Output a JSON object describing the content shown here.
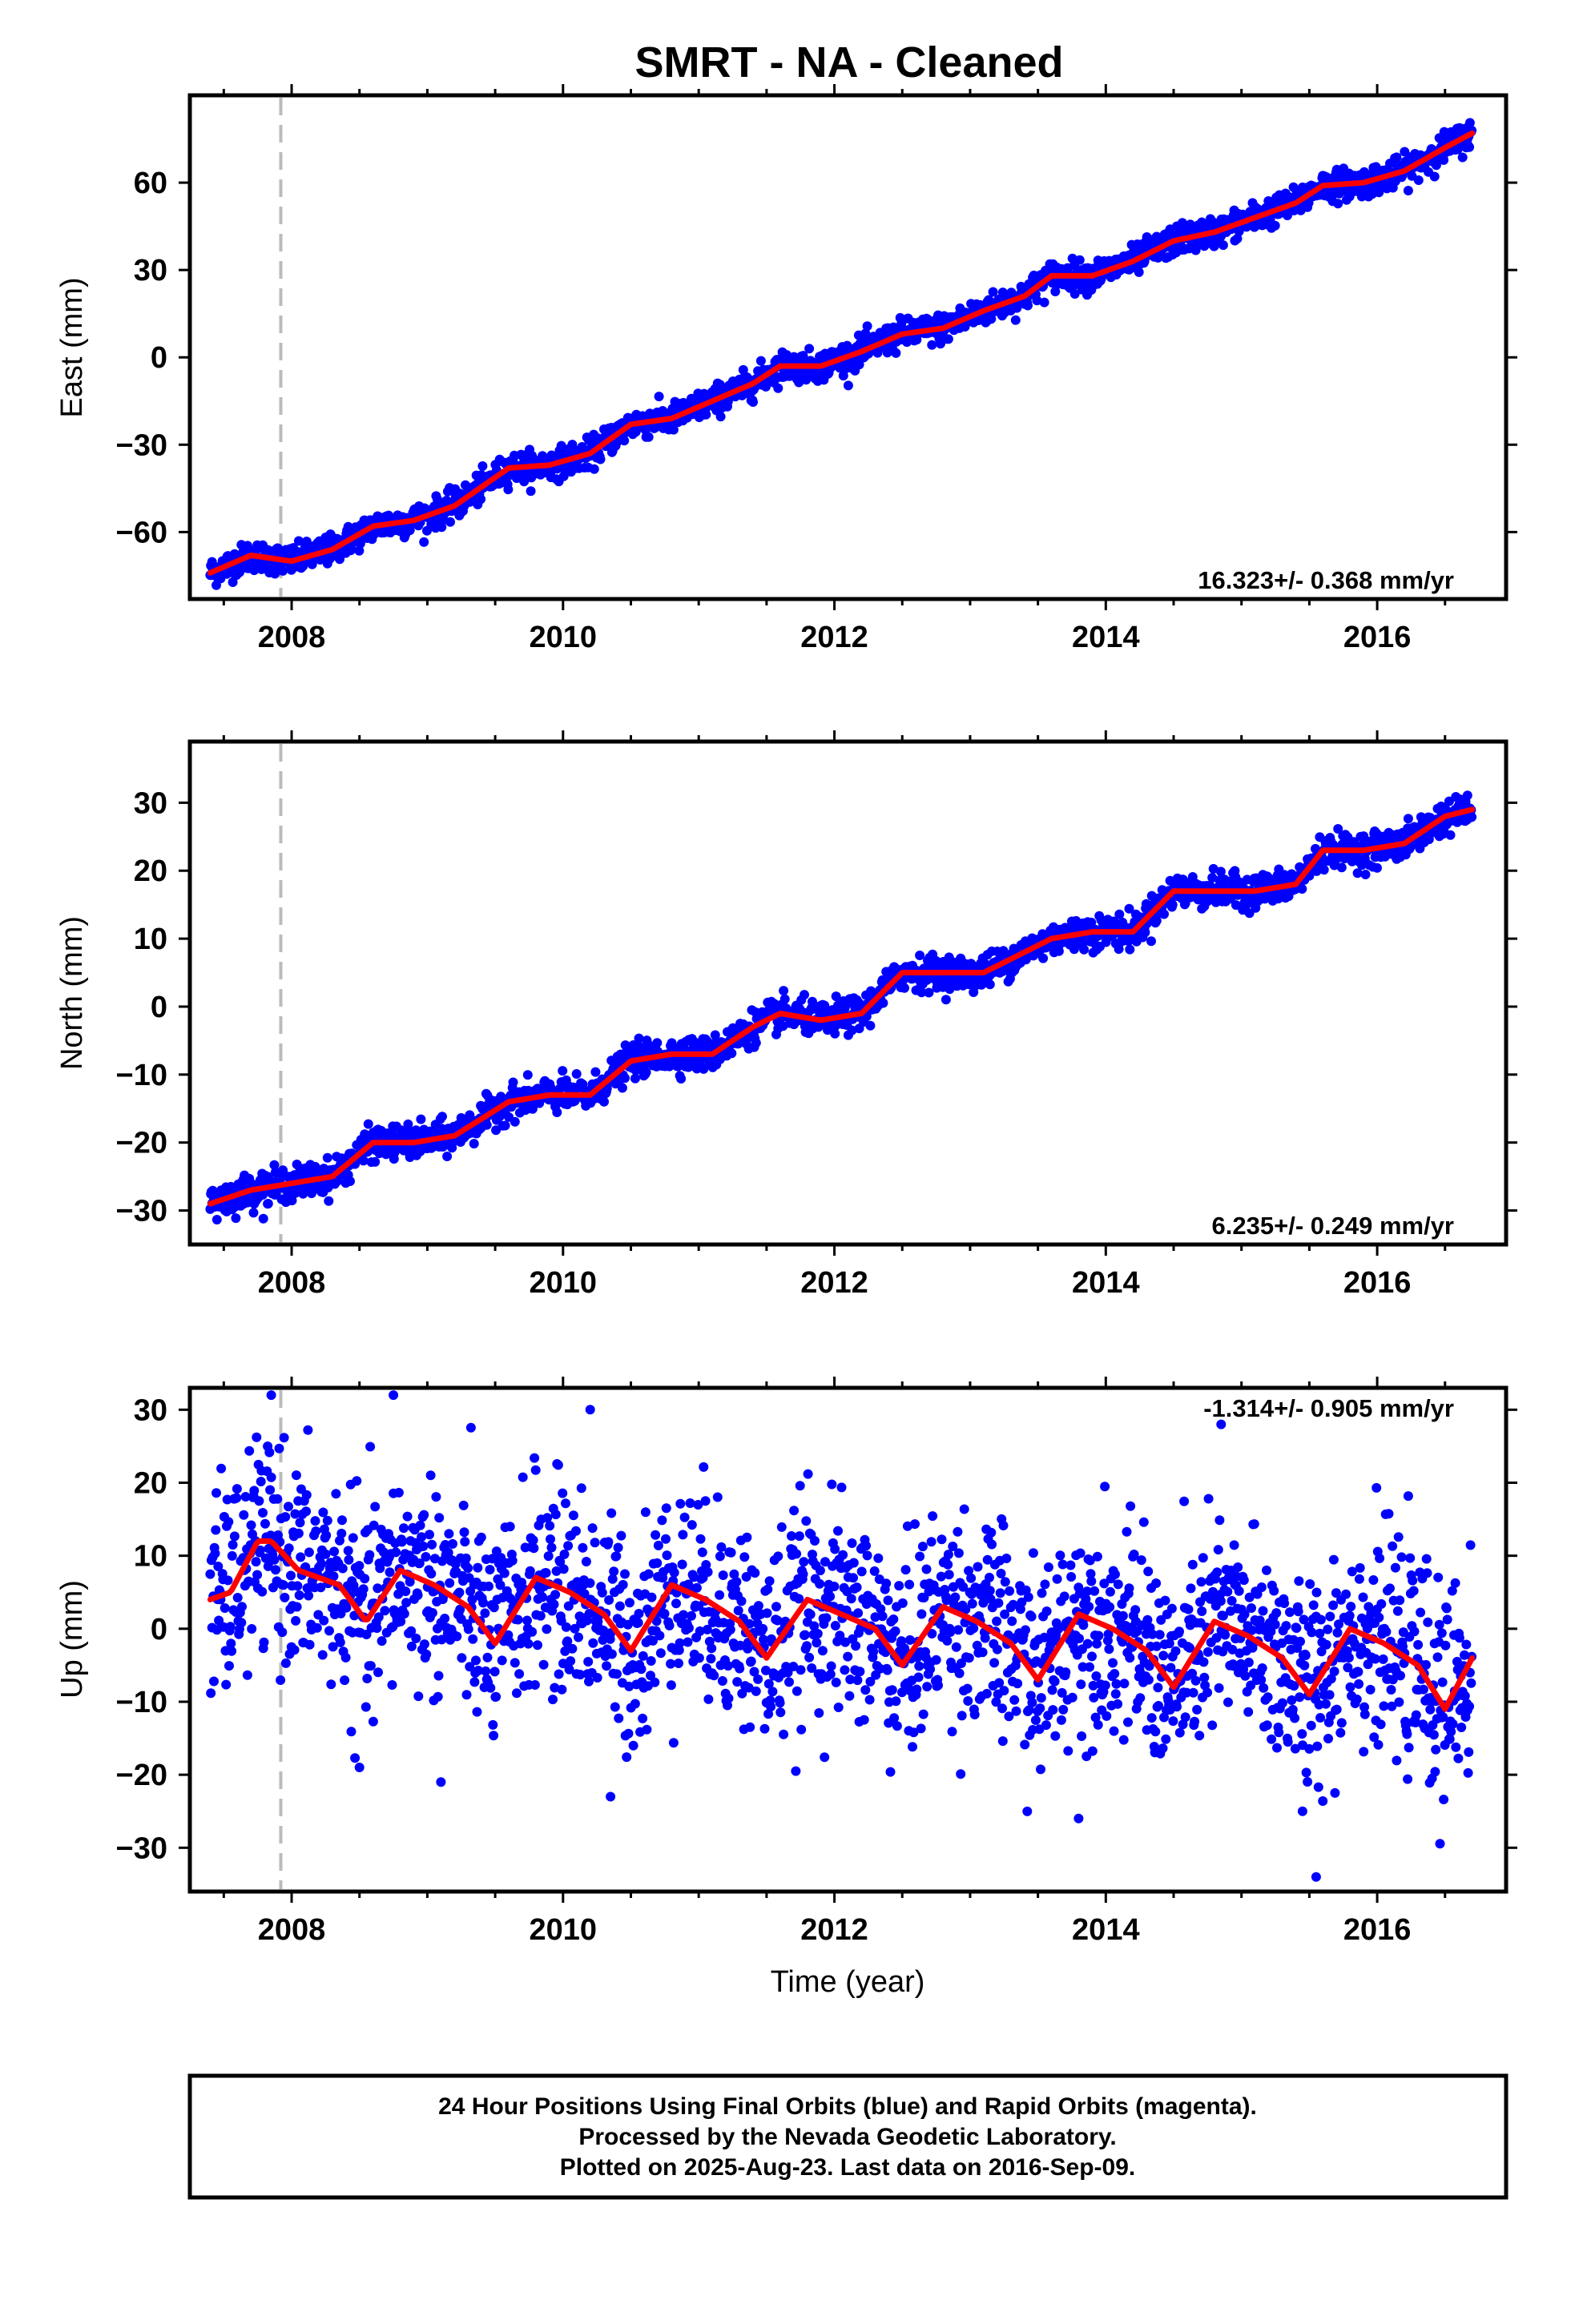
{
  "chart_data": {
    "type": "scatter",
    "title": "SMRT  - NA - Cleaned",
    "xlabel": "Time (year)",
    "x_ticks": [
      2008,
      2010,
      2012,
      2014,
      2016
    ],
    "xlim": [
      2007.25,
      2016.95
    ],
    "reference_line_x": 2007.92,
    "colors": {
      "points": "#0000ff",
      "fit": "#ff0000",
      "reference": "#bbbbbb",
      "frame": "#000000"
    },
    "panels": [
      {
        "name": "east",
        "ylabel": "East (mm)",
        "ylim": [
          -83,
          90
        ],
        "y_ticks": [
          -60,
          -30,
          0,
          30,
          60
        ],
        "rate_label": "16.323+/- 0.368 mm/yr",
        "fit_x": [
          2007.4,
          2007.7,
          2008.0,
          2008.3,
          2008.6,
          2008.9,
          2009.2,
          2009.6,
          2009.9,
          2010.2,
          2010.5,
          2010.8,
          2011.1,
          2011.4,
          2011.6,
          2011.9,
          2012.2,
          2012.5,
          2012.8,
          2013.1,
          2013.4,
          2013.6,
          2013.9,
          2014.2,
          2014.5,
          2014.8,
          2015.1,
          2015.4,
          2015.6,
          2015.9,
          2016.2,
          2016.5,
          2016.7
        ],
        "fit_y": [
          -74,
          -68,
          -70,
          -66,
          -58,
          -56,
          -51,
          -38,
          -37,
          -33,
          -23,
          -21,
          -15,
          -9,
          -3,
          -3,
          2,
          8,
          10,
          16,
          21,
          28,
          28,
          33,
          40,
          43,
          48,
          53,
          59,
          60,
          64,
          72,
          77
        ],
        "fit_scatter": 2.5
      },
      {
        "name": "north",
        "ylabel": "North (mm)",
        "ylim": [
          -35,
          39
        ],
        "y_ticks": [
          -30,
          -20,
          -10,
          0,
          10,
          20,
          30
        ],
        "rate_label": "6.235+/- 0.249 mm/yr",
        "fit_x": [
          2007.4,
          2007.7,
          2008.0,
          2008.3,
          2008.6,
          2008.9,
          2009.2,
          2009.6,
          2009.9,
          2010.2,
          2010.5,
          2010.8,
          2011.1,
          2011.4,
          2011.6,
          2011.9,
          2012.2,
          2012.5,
          2012.8,
          2013.1,
          2013.4,
          2013.6,
          2013.9,
          2014.2,
          2014.5,
          2014.8,
          2015.1,
          2015.4,
          2015.6,
          2015.9,
          2016.2,
          2016.5,
          2016.7
        ],
        "fit_y": [
          -29,
          -27,
          -26,
          -25,
          -20,
          -20,
          -19,
          -14,
          -13,
          -13,
          -8,
          -7,
          -7,
          -3,
          -1,
          -2,
          -1,
          5,
          5,
          5,
          8,
          10,
          11,
          11,
          17,
          17,
          17,
          18,
          23,
          23,
          24,
          28,
          29
        ],
        "fit_scatter": 1.2
      },
      {
        "name": "up",
        "ylabel": "Up (mm)",
        "ylim": [
          -36,
          33
        ],
        "y_ticks": [
          -30,
          -20,
          -10,
          0,
          10,
          20,
          30
        ],
        "rate_label": "-1.314+/- 0.905 mm/yr",
        "fit_x": [
          2007.4,
          2007.55,
          2007.75,
          2007.85,
          2008.05,
          2008.35,
          2008.55,
          2008.8,
          2009.05,
          2009.3,
          2009.5,
          2009.8,
          2010.05,
          2010.3,
          2010.5,
          2010.8,
          2011.05,
          2011.3,
          2011.5,
          2011.8,
          2012.05,
          2012.3,
          2012.5,
          2012.8,
          2013.05,
          2013.3,
          2013.5,
          2013.8,
          2014.05,
          2014.3,
          2014.5,
          2014.8,
          2015.05,
          2015.3,
          2015.5,
          2015.8,
          2016.05,
          2016.3,
          2016.5,
          2016.7
        ],
        "fit_y": [
          4,
          5,
          12,
          12,
          8,
          6,
          1,
          8,
          6,
          3,
          -2,
          7,
          5,
          2,
          -3,
          6,
          4,
          1,
          -4,
          4,
          2,
          0,
          -5,
          3,
          1,
          -2,
          -7,
          2,
          0,
          -3,
          -8,
          1,
          -1,
          -4,
          -9,
          0,
          -2,
          -5,
          -11,
          -4
        ],
        "fit_scatter": 7.0
      }
    ]
  },
  "footer": {
    "line1": "24 Hour Positions Using Final Orbits (blue) and Rapid Orbits (magenta).",
    "line2": "Processed by the Nevada Geodetic Laboratory.",
    "line3": "Plotted on 2025-Aug-23. Last data on 2016-Sep-09."
  },
  "outliers": {
    "up": [
      [
        2007.85,
        32
      ],
      [
        2008.75,
        32
      ],
      [
        2010.2,
        30
      ],
      [
        2014.85,
        28
      ],
      [
        2015.55,
        -34
      ],
      [
        2013.8,
        -26
      ],
      [
        2015.45,
        -25
      ],
      [
        2008.5,
        -19
      ],
      [
        2010.35,
        -23
      ],
      [
        2009.1,
        -21
      ]
    ]
  }
}
